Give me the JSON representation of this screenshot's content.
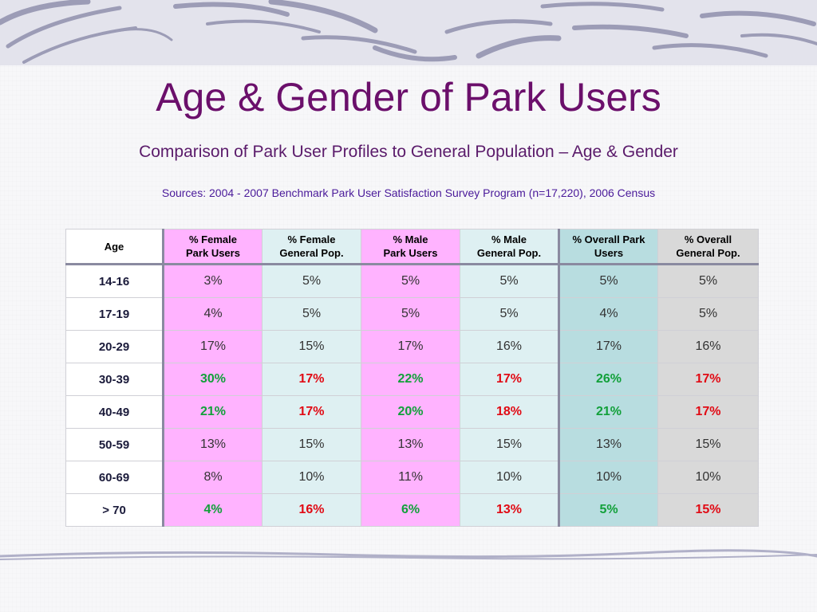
{
  "slide": {
    "title": "Age & Gender of Park Users",
    "subtitle": "Comparison of Park User Profiles to General Population – Age & Gender",
    "sources": "Sources: 2004 - 2007 Benchmark Park User Satisfaction Survey Program (n=17,220), 2006 Census"
  },
  "table": {
    "headers": {
      "age": "Age",
      "female_users_1": "% Female",
      "female_users_2": "Park Users",
      "female_gen_1": "% Female",
      "female_gen_2": "General Pop.",
      "male_users_1": "% Male",
      "male_users_2": "Park Users",
      "male_gen_1": "% Male",
      "male_gen_2": "General Pop.",
      "overall_users_1": "% Overall Park",
      "overall_users_2": "Users",
      "overall_gen_1": "% Overall",
      "overall_gen_2": "General Pop."
    },
    "rows": [
      {
        "age": "14-16",
        "female_users": "3%",
        "female_gen": "5%",
        "male_users": "5%",
        "male_gen": "5%",
        "overall_users": "5%",
        "overall_gen": "5%",
        "highlight": false
      },
      {
        "age": "17-19",
        "female_users": "4%",
        "female_gen": "5%",
        "male_users": "5%",
        "male_gen": "5%",
        "overall_users": "4%",
        "overall_gen": "5%",
        "highlight": false
      },
      {
        "age": "20-29",
        "female_users": "17%",
        "female_gen": "15%",
        "male_users": "17%",
        "male_gen": "16%",
        "overall_users": "17%",
        "overall_gen": "16%",
        "highlight": false
      },
      {
        "age": "30-39",
        "female_users": "30%",
        "female_gen": "17%",
        "male_users": "22%",
        "male_gen": "17%",
        "overall_users": "26%",
        "overall_gen": "17%",
        "highlight": true
      },
      {
        "age": "40-49",
        "female_users": "21%",
        "female_gen": "17%",
        "male_users": "20%",
        "male_gen": "18%",
        "overall_users": "21%",
        "overall_gen": "17%",
        "highlight": true
      },
      {
        "age": "50-59",
        "female_users": "13%",
        "female_gen": "15%",
        "male_users": "13%",
        "male_gen": "15%",
        "overall_users": "13%",
        "overall_gen": "15%",
        "highlight": false
      },
      {
        "age": "60-69",
        "female_users": "8%",
        "female_gen": "10%",
        "male_users": "11%",
        "male_gen": "10%",
        "overall_users": "10%",
        "overall_gen": "10%",
        "highlight": false
      },
      {
        "age": "> 70",
        "female_users": "4%",
        "female_gen": "16%",
        "male_users": "6%",
        "male_gen": "13%",
        "overall_users": "5%",
        "overall_gen": "15%",
        "highlight": true
      }
    ]
  },
  "colors": {
    "title": "#6b0f6b",
    "female_users_bg": "#ffb3ff",
    "general_bg": "#def0f2",
    "overall_users_bg": "#b8dde0",
    "overall_gen_bg": "#d9d9d9",
    "highlight_green": "#12a03a",
    "highlight_red": "#e10a14"
  }
}
